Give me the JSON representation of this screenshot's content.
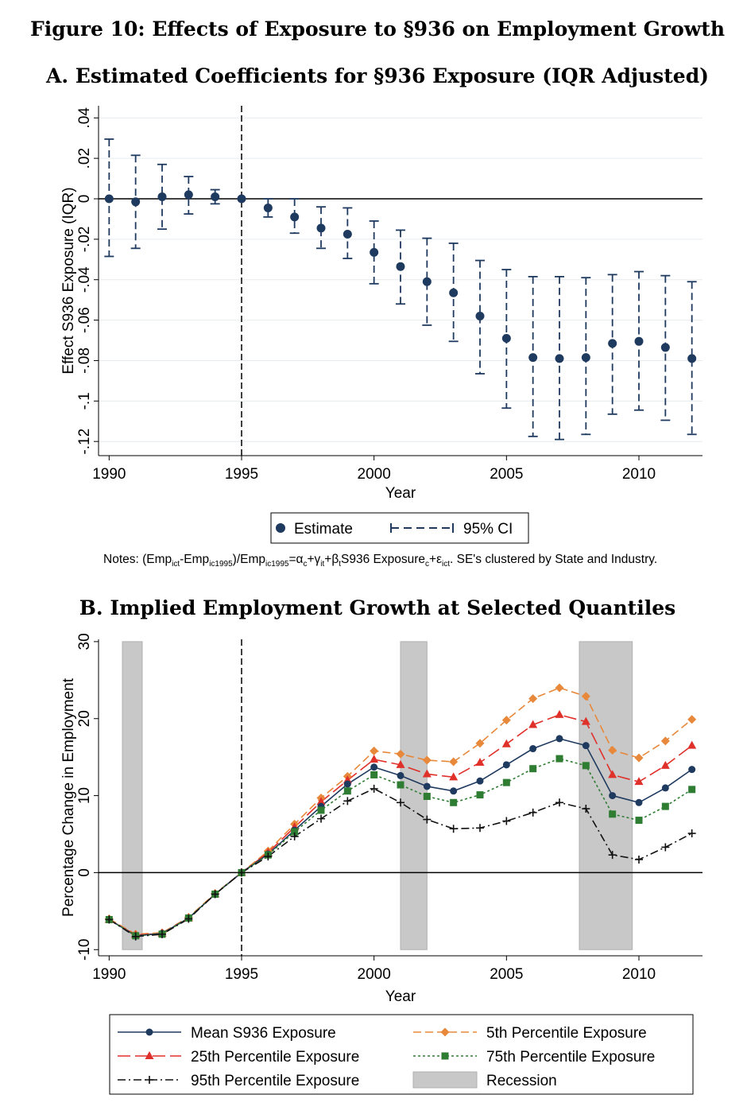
{
  "figure_title": "Figure 10: Effects of Exposure to §936 on Employment Growth",
  "panel_a_title": "A. Estimated Coefficients for §936 Exposure (IQR Adjusted)",
  "panel_b_title": "B. Implied Employment Growth at Selected Quantiles",
  "notes": {
    "prefix": "Notes: (Emp",
    "sub1": "ict",
    "mid1": "-Emp",
    "sub2": "ic1995",
    "mid2": ")/Emp",
    "sub3": "ic1995",
    "mid3": "=α",
    "sub4": "c",
    "mid4": "+γ",
    "sub5": "it",
    "mid5": "+β",
    "sub6": "t",
    "mid6": "S936 Exposure",
    "sub7": "c",
    "mid7": "+ε",
    "sub8": "ict",
    "suffix": ". SE's clustered by State and Industry."
  },
  "chart_data": [
    {
      "type": "scatter",
      "title": "A. Estimated Coefficients for §936 Exposure (IQR Adjusted)",
      "xlabel": "Year",
      "ylabel": "Effect S936 Exposure (IQR)",
      "xlim": [
        1989.6,
        2012.4
      ],
      "ylim": [
        -0.127,
        0.046
      ],
      "xticks": [
        1990,
        1995,
        2000,
        2005,
        2010
      ],
      "xtick_labels": [
        "1990",
        "1995",
        "2000",
        "2005",
        "2010"
      ],
      "yticks": [
        -0.12,
        -0.1,
        -0.08,
        -0.06,
        -0.04,
        -0.02,
        0,
        0.02,
        0.04
      ],
      "ytick_labels": [
        "-.12",
        "-.1",
        "-.08",
        "-.06",
        "-.04",
        "-.02",
        "0",
        ".02",
        ".04"
      ],
      "grid": true,
      "vline_x": 1995,
      "legend": [
        "Estimate",
        "95% CI"
      ],
      "legend_position": "bottom",
      "x": [
        1990,
        1991,
        1992,
        1993,
        1994,
        1995,
        1996,
        1997,
        1998,
        1999,
        2000,
        2001,
        2002,
        2003,
        2004,
        2005,
        2006,
        2007,
        2008,
        2009,
        2010,
        2011,
        2012
      ],
      "estimate": [
        0.0,
        -0.0015,
        0.001,
        0.002,
        0.001,
        0.0,
        -0.0045,
        -0.009,
        -0.0145,
        -0.0175,
        -0.0265,
        -0.0335,
        -0.041,
        -0.0465,
        -0.058,
        -0.069,
        -0.0785,
        -0.079,
        -0.0785,
        -0.0715,
        -0.0705,
        -0.0735,
        -0.079
      ],
      "ci_low": [
        -0.0285,
        -0.0245,
        -0.015,
        -0.0075,
        -0.0025,
        0.0,
        -0.009,
        -0.017,
        -0.0245,
        -0.0295,
        -0.042,
        -0.052,
        -0.0625,
        -0.0705,
        -0.0865,
        -0.1035,
        -0.1175,
        -0.119,
        -0.1165,
        -0.1065,
        -0.1045,
        -0.1095,
        -0.1165
      ],
      "ci_high": [
        0.0295,
        0.0215,
        0.017,
        0.011,
        0.0045,
        0.0,
        0.0,
        0.0,
        -0.004,
        -0.0045,
        -0.011,
        -0.0155,
        -0.0195,
        -0.022,
        -0.0305,
        -0.035,
        -0.0385,
        -0.0385,
        -0.039,
        -0.0375,
        -0.036,
        -0.038,
        -0.041
      ]
    },
    {
      "type": "line",
      "title": "B. Implied Employment Growth at Selected Quantiles",
      "xlabel": "Year",
      "ylabel": "Percentage Change in Employment",
      "xlim": [
        1989.6,
        2012.4
      ],
      "ylim": [
        -10.8,
        30.3
      ],
      "xticks": [
        1990,
        1995,
        2000,
        2005,
        2010
      ],
      "xtick_labels": [
        "1990",
        "1995",
        "2000",
        "2005",
        "2010"
      ],
      "yticks": [
        -10,
        0,
        10,
        20,
        30
      ],
      "ytick_labels": [
        "-10",
        "0",
        "10",
        "20",
        "30"
      ],
      "grid": false,
      "vline_x": 1995,
      "recessions": [
        [
          1990.5,
          1991.25
        ],
        [
          2001.0,
          2002.0
        ],
        [
          2007.75,
          2009.75
        ]
      ],
      "legend_position": "bottom",
      "x": [
        1990,
        1991,
        1992,
        1993,
        1994,
        1995,
        1996,
        1997,
        1998,
        1999,
        2000,
        2001,
        2002,
        2003,
        2004,
        2005,
        2006,
        2007,
        2008,
        2009,
        2010,
        2011,
        2012
      ],
      "series": [
        {
          "name": "Mean S936 Exposure",
          "color": "#1f3a5f",
          "marker": "circle",
          "dash": "",
          "values": [
            -6.1,
            -8.2,
            -7.9,
            -5.9,
            -2.8,
            0.0,
            2.4,
            5.5,
            8.6,
            11.5,
            13.7,
            12.6,
            11.2,
            10.6,
            11.9,
            14.0,
            16.1,
            17.4,
            16.5,
            10.0,
            9.1,
            11.0,
            13.4
          ]
        },
        {
          "name": "5th Percentile Exposure",
          "color": "#e8883a",
          "marker": "diamond",
          "dash": "10,5",
          "values": [
            -6.0,
            -8.0,
            -7.8,
            -5.8,
            -2.7,
            0.0,
            2.8,
            6.3,
            9.7,
            12.5,
            15.8,
            15.4,
            14.6,
            14.4,
            16.8,
            19.8,
            22.6,
            24.0,
            22.9,
            15.9,
            14.9,
            17.1,
            19.9
          ]
        },
        {
          "name": "25th Percentile Exposure",
          "color": "#e0302a",
          "marker": "triangle",
          "dash": "16,6",
          "values": [
            -6.1,
            -8.1,
            -7.9,
            -5.9,
            -2.8,
            0.0,
            2.6,
            5.9,
            9.2,
            12.0,
            14.7,
            14.0,
            12.8,
            12.4,
            14.3,
            16.7,
            19.2,
            20.5,
            19.6,
            12.7,
            11.8,
            13.9,
            16.5
          ]
        },
        {
          "name": "75th Percentile Exposure",
          "color": "#2e7d32",
          "marker": "square",
          "dash": "3,3",
          "values": [
            -6.1,
            -8.2,
            -8.0,
            -5.9,
            -2.8,
            0.0,
            2.3,
            5.3,
            8.1,
            10.6,
            12.7,
            11.4,
            9.9,
            9.1,
            10.1,
            11.7,
            13.5,
            14.8,
            13.9,
            7.6,
            6.8,
            8.6,
            10.8
          ]
        },
        {
          "name": "95th Percentile Exposure",
          "color": "#111111",
          "marker": "plus",
          "dash": "10,4,2,4",
          "values": [
            -6.1,
            -8.3,
            -8.0,
            -6.0,
            -2.8,
            0.0,
            2.1,
            4.7,
            7.0,
            9.3,
            10.9,
            9.1,
            6.9,
            5.7,
            5.8,
            6.7,
            7.8,
            9.1,
            8.3,
            2.3,
            1.7,
            3.3,
            5.1
          ]
        }
      ],
      "recession_label": "Recession"
    }
  ]
}
